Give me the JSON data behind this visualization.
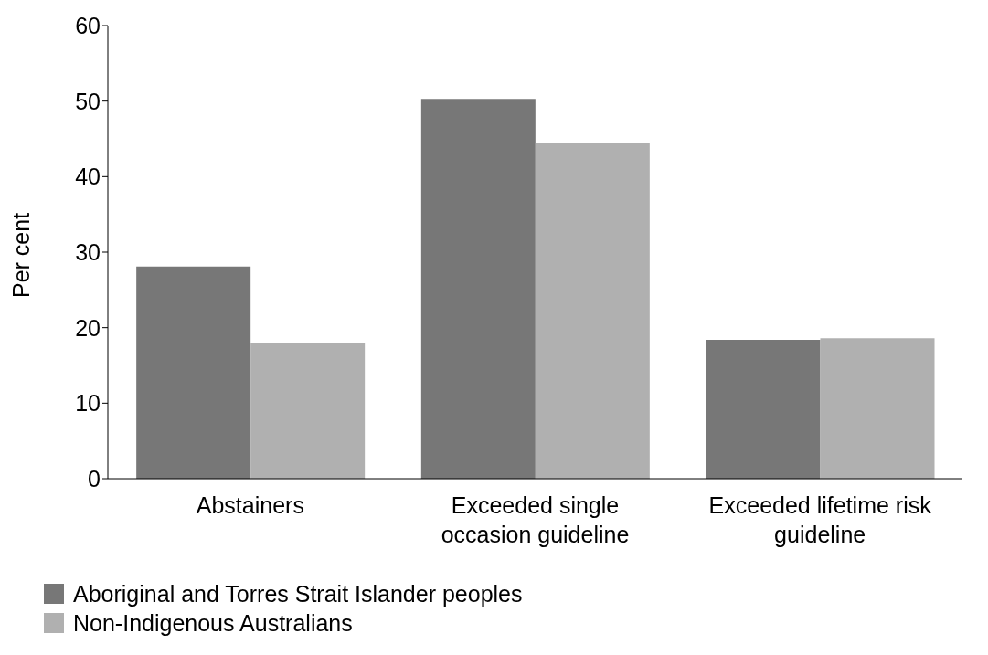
{
  "chart_data": {
    "type": "bar",
    "ylabel": "Per cent",
    "categories": [
      "Abstainers",
      "Exceeded single occasion guideline",
      "Exceeded lifetime risk guideline"
    ],
    "series": [
      {
        "name": "Aboriginal and Torres Strait Islander peoples",
        "color": "#777777",
        "values": [
          28.1,
          50.3,
          18.4
        ]
      },
      {
        "name": "Non-Indigenous Australians",
        "color": "#b0b0b0",
        "values": [
          18.0,
          44.4,
          18.6
        ]
      }
    ],
    "ylim": [
      0,
      60
    ],
    "yticks": [
      0,
      10,
      20,
      30,
      40,
      50,
      60
    ],
    "grid": false,
    "legend": "bottom left"
  }
}
